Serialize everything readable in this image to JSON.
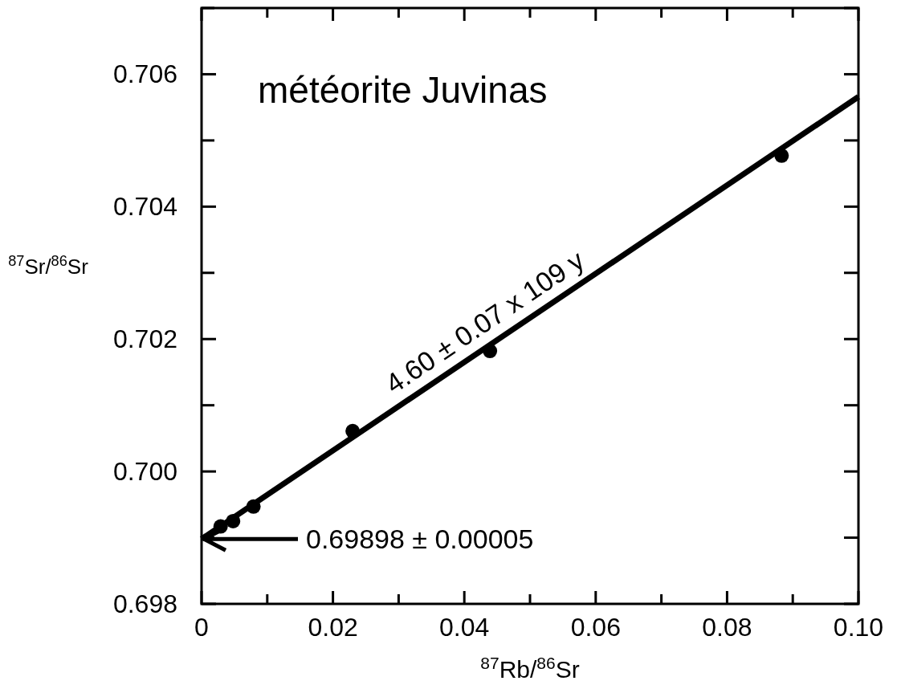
{
  "chart_data": {
    "type": "scatter",
    "title": "météorite Juvinas",
    "xlabel": "$^{87}$Rb/$^{86}$Sr",
    "ylabel": "$^{87}$Sr/$^{86}$Sr",
    "xlim": [
      0,
      0.1
    ],
    "ylim": [
      0.698,
      0.707
    ],
    "xticks": [
      0,
      {
        "value": 0.01,
        "label": null
      },
      0.02,
      {
        "value": 0.03,
        "label": null
      },
      0.04,
      {
        "value": 0.05,
        "label": null
      },
      0.06,
      {
        "value": 0.07,
        "label": null
      },
      0.08,
      {
        "value": 0.09,
        "label": null
      },
      {
        "value": 0.1,
        "label": "0.10"
      }
    ],
    "yticks": [
      0.698,
      {
        "value": 0.699,
        "label": null
      },
      {
        "value": 0.7,
        "label": "0.700"
      },
      {
        "value": 0.701,
        "label": null
      },
      0.702,
      {
        "value": 0.703,
        "label": null
      },
      0.704,
      {
        "value": 0.705,
        "label": null
      },
      0.706,
      {
        "value": 0.707,
        "label": null
      }
    ],
    "grid": false,
    "series": [
      {
        "marker": "circle",
        "color": "#000000",
        "x": [
          0.0029,
          0.0048,
          0.0079,
          0.023,
          0.0439,
          0.0883
        ],
        "values": [
          0.69917,
          0.69925,
          0.69947,
          0.70061,
          0.70182,
          0.70477
        ]
      },
      {
        "type": "line",
        "color": "#000000",
        "x": [
          0,
          0.1
        ],
        "values": [
          0.69898,
          0.70566
        ]
      }
    ],
    "annotations": [
      {
        "text": "4.60 ± 0.07 x 109 y",
        "x": 0.045,
        "y": 0.70198
      },
      "0.69898 ± 0.00005"
    ]
  }
}
